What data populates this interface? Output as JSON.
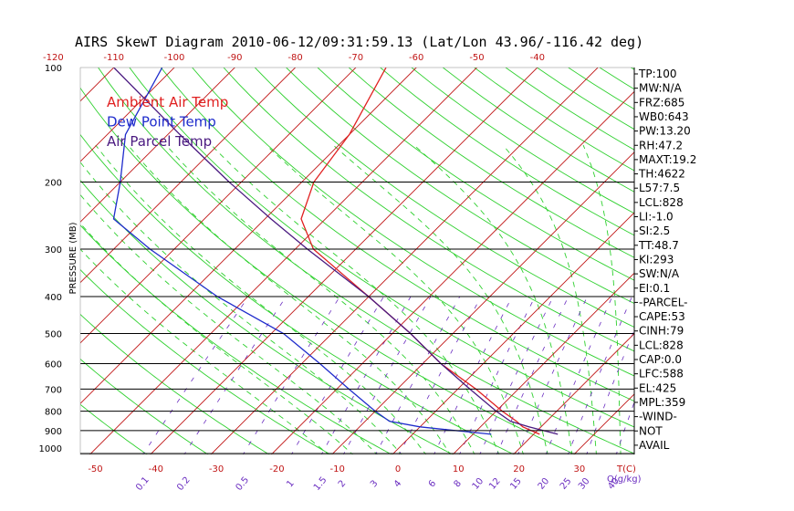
{
  "title": "AIRS SkewT Diagram 2010-06-12/09:31:59.13 (Lat/Lon 43.96/-116.42 deg)",
  "colors": {
    "ambient": "#e02020",
    "dewpoint": "#1f2ccc",
    "parcel": "#4a1a80",
    "isotherm": "#c01515",
    "dry_adiabat": "#2ed02e",
    "moist_adiabat": "#2ed02e",
    "mixing_ratio": "#6a2dc0",
    "axis": "#000000"
  },
  "legend": [
    {
      "label": "Ambient Air Temp",
      "color": "#e02020"
    },
    {
      "label": "Dew Point Temp",
      "color": "#1f2ccc"
    },
    {
      "label": "Air Parcel Temp",
      "color": "#4a1a80"
    }
  ],
  "chart_data": {
    "type": "line",
    "subtype": "skew-t log-p",
    "ylabel": "PRESSURE (MB)",
    "xlabel": "T(C)",
    "y_scale": "log",
    "ylim": [
      1000,
      100
    ],
    "pressure_ticks": [
      100,
      200,
      300,
      400,
      500,
      600,
      700,
      800,
      900,
      1000
    ],
    "top_temp_ticks": [
      -120,
      -110,
      -100,
      -90,
      -80,
      -70,
      -60,
      -50,
      -40
    ],
    "bottom_temp_ticks": [
      -50,
      -40,
      -30,
      -20,
      -10,
      0,
      10,
      20,
      30
    ],
    "mixing_ratio_label": "Q(g/kg)",
    "mixing_ratio_ticks": [
      "0.1",
      "0.2",
      "0.5",
      "1",
      "1.5",
      "2",
      "3",
      "4",
      "6",
      "8",
      "10",
      "12",
      "15",
      "20",
      "25",
      "30",
      "40"
    ],
    "series": [
      {
        "name": "Ambient Air Temp",
        "points": [
          {
            "p": 920,
            "t": 21
          },
          {
            "p": 880,
            "t": 17
          },
          {
            "p": 850,
            "t": 15
          },
          {
            "p": 800,
            "t": 11
          },
          {
            "p": 700,
            "t": 3
          },
          {
            "p": 600,
            "t": -7
          },
          {
            "p": 500,
            "t": -17
          },
          {
            "p": 400,
            "t": -30
          },
          {
            "p": 300,
            "t": -47
          },
          {
            "p": 250,
            "t": -54
          },
          {
            "p": 200,
            "t": -58
          },
          {
            "p": 150,
            "t": -60
          },
          {
            "p": 100,
            "t": -65
          }
        ]
      },
      {
        "name": "Dew Point Temp",
        "points": [
          {
            "p": 920,
            "t": 13
          },
          {
            "p": 880,
            "t": 0
          },
          {
            "p": 850,
            "t": -6
          },
          {
            "p": 800,
            "t": -10
          },
          {
            "p": 700,
            "t": -18
          },
          {
            "p": 600,
            "t": -27
          },
          {
            "p": 500,
            "t": -38
          },
          {
            "p": 400,
            "t": -55
          },
          {
            "p": 300,
            "t": -74
          },
          {
            "p": 250,
            "t": -85
          },
          {
            "p": 200,
            "t": -90
          },
          {
            "p": 150,
            "t": -97
          },
          {
            "p": 100,
            "t": -102
          }
        ]
      },
      {
        "name": "Air Parcel Temp",
        "points": [
          {
            "p": 920,
            "t": 24
          },
          {
            "p": 880,
            "t": 18
          },
          {
            "p": 850,
            "t": 14
          },
          {
            "p": 800,
            "t": 10
          },
          {
            "p": 700,
            "t": 2
          },
          {
            "p": 600,
            "t": -7
          },
          {
            "p": 500,
            "t": -17
          },
          {
            "p": 400,
            "t": -30
          },
          {
            "p": 300,
            "t": -48
          },
          {
            "p": 250,
            "t": -59
          },
          {
            "p": 200,
            "t": -72
          },
          {
            "p": 150,
            "t": -88
          },
          {
            "p": 100,
            "t": -110
          }
        ]
      }
    ]
  },
  "indices": [
    "TP:100",
    "MW:N/A",
    "FRZ:685",
    "WB0:643",
    "PW:13.20",
    "RH:47.2",
    "MAXT:19.2",
    "TH:4622",
    "L57:7.5",
    "LCL:828",
    "LI:-1.0",
    "SI:2.5",
    "TT:48.7",
    "KI:293",
    "SW:N/A",
    "EI:0.1",
    "-PARCEL-",
    "CAPE:53",
    "CINH:79",
    "LCL:828",
    "CAP:0.0",
    "LFC:588",
    "EL:425",
    "MPL:359",
    "-WIND-",
    "NOT",
    "AVAIL"
  ]
}
